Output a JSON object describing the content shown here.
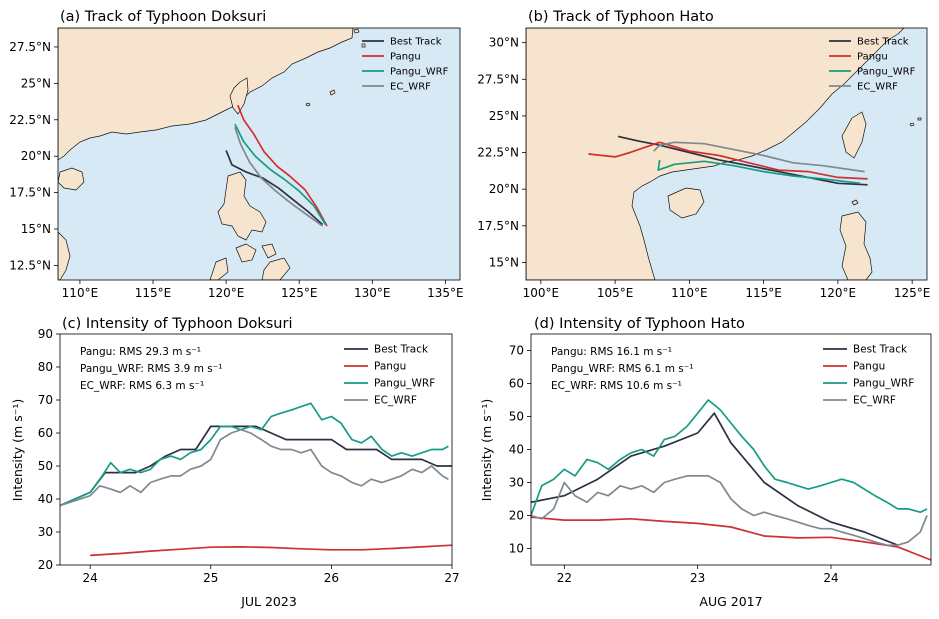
{
  "colors": {
    "best": "#2b3140",
    "pangu": "#d03030",
    "pangu_wrf": "#169c84",
    "ec_wrf": "#808890",
    "land": "#f6e4ce",
    "sea": "#d7e9f5",
    "coast": "#111111"
  },
  "chart_data": [
    {
      "type": "line",
      "subtype": "map-track",
      "title": "(a) Track of Typhoon Doksuri",
      "xlim": [
        108.5,
        136.0
      ],
      "ylim": [
        11.5,
        28.8
      ],
      "xticks": [
        110,
        115,
        120,
        125,
        130,
        135
      ],
      "xtick_labels": [
        "110°E",
        "115°E",
        "120°E",
        "125°E",
        "130°E",
        "135°E"
      ],
      "yticks": [
        12.5,
        15,
        17.5,
        20,
        22.5,
        25,
        27.5
      ],
      "ytick_labels": [
        "12.5°N",
        "15°N",
        "17.5°N",
        "20°N",
        "22.5°N",
        "25°N",
        "27.5°N"
      ],
      "legend": [
        "Best Track",
        "Pangu",
        "Pangu_WRF",
        "EC_WRF"
      ],
      "legend_position": "top-right",
      "series": [
        {
          "name": "Best Track",
          "lon": [
            126.6,
            125.6,
            124.6,
            123.6,
            122.5,
            121.4,
            120.4,
            120.0
          ],
          "lat": [
            15.3,
            16.2,
            17.0,
            17.8,
            18.5,
            18.9,
            19.4,
            20.4
          ]
        },
        {
          "name": "Pangu",
          "lon": [
            126.9,
            126.2,
            125.4,
            124.4,
            123.5,
            122.6,
            121.9,
            121.2,
            120.8
          ],
          "lat": [
            15.2,
            16.5,
            17.7,
            18.6,
            19.3,
            20.3,
            21.5,
            22.5,
            23.5
          ]
        },
        {
          "name": "Pangu_WRF",
          "lon": [
            126.8,
            126.0,
            125.0,
            124.0,
            123.0,
            122.0,
            121.2,
            120.6
          ],
          "lat": [
            15.3,
            16.6,
            17.6,
            18.4,
            19.1,
            20.0,
            21.0,
            22.2
          ]
        },
        {
          "name": "EC_WRF",
          "lon": [
            126.6,
            125.5,
            124.4,
            123.4,
            122.4,
            121.6,
            121.0,
            120.6
          ],
          "lat": [
            15.2,
            16.0,
            16.8,
            17.6,
            18.5,
            19.6,
            20.8,
            22.0
          ]
        }
      ]
    },
    {
      "type": "line",
      "subtype": "map-track",
      "title": "(b) Track of Typhoon Hato",
      "xlim": [
        99.0,
        126.0
      ],
      "ylim": [
        13.8,
        31.0
      ],
      "xticks": [
        100,
        105,
        110,
        115,
        120,
        125
      ],
      "xtick_labels": [
        "100°E",
        "105°E",
        "110°E",
        "115°E",
        "120°E",
        "125°E"
      ],
      "yticks": [
        15,
        17.5,
        20,
        22.5,
        25,
        27.5,
        30
      ],
      "ytick_labels": [
        "15°N",
        "17.5°N",
        "20°N",
        "22.5°N",
        "25°N",
        "27.5°N",
        "30°N"
      ],
      "legend": [
        "Best Track",
        "Pangu",
        "Pangu_WRF",
        "EC_WRF"
      ],
      "legend_position": "top-right",
      "series": [
        {
          "name": "Best Track",
          "lon": [
            122.0,
            120.0,
            118.0,
            116.0,
            114.0,
            112.0,
            110.0,
            108.0,
            106.5,
            105.2
          ],
          "lat": [
            20.3,
            20.4,
            20.8,
            21.2,
            21.6,
            22.0,
            22.5,
            23.0,
            23.3,
            23.6
          ]
        },
        {
          "name": "Pangu",
          "lon": [
            122.0,
            120.0,
            118.0,
            116.0,
            114.0,
            112.0,
            110.0,
            108.0,
            106.0,
            105.0,
            103.2
          ],
          "lat": [
            20.7,
            20.8,
            21.2,
            21.3,
            21.8,
            22.3,
            22.6,
            23.2,
            22.5,
            22.2,
            22.4
          ]
        },
        {
          "name": "Pangu_WRF",
          "lon": [
            121.5,
            119.0,
            117.0,
            115.0,
            113.0,
            111.0,
            109.0,
            107.9,
            108.0
          ],
          "lat": [
            20.4,
            20.7,
            20.9,
            21.2,
            21.6,
            21.9,
            21.7,
            21.3,
            22.0
          ]
        },
        {
          "name": "EC_WRF",
          "lon": [
            121.8,
            119.0,
            117.0,
            115.0,
            113.0,
            111.0,
            109.0,
            108.0,
            107.6
          ],
          "lat": [
            21.2,
            21.6,
            21.8,
            22.3,
            22.7,
            23.1,
            23.2,
            23.0,
            22.6
          ]
        }
      ]
    },
    {
      "type": "line",
      "title": "(c) Intensity of Typhoon Doksuri",
      "xlabel": "JUL 2023",
      "ylabel": "Intensity (m s⁻¹)",
      "xlim": [
        23.75,
        27.0
      ],
      "ylim": [
        20,
        90
      ],
      "xticks": [
        24,
        25,
        26,
        27
      ],
      "xtick_labels": [
        "24",
        "25",
        "26",
        "27"
      ],
      "yticks": [
        20,
        30,
        40,
        50,
        60,
        70,
        80,
        90
      ],
      "annotations": [
        "Pangu: RMS 29.3 m s⁻¹",
        "Pangu_WRF: RMS 3.9 m s⁻¹",
        "EC_WRF: RMS 6.3 m s⁻¹"
      ],
      "legend": [
        "Best Track",
        "Pangu",
        "Pangu_WRF",
        "EC_WRF"
      ],
      "legend_position": "top-right",
      "series": [
        {
          "name": "Best Track",
          "x": [
            23.75,
            24.0,
            24.125,
            24.375,
            24.5,
            24.625,
            24.75,
            24.875,
            25.0,
            25.375,
            25.5,
            25.625,
            26.0,
            26.125,
            26.375,
            26.5,
            26.75,
            26.875,
            27.0
          ],
          "y": [
            38,
            42,
            48,
            48,
            50,
            53,
            55,
            55,
            62,
            62,
            60,
            58,
            58,
            55,
            55,
            52,
            52,
            50,
            50
          ]
        },
        {
          "name": "Pangu",
          "x": [
            24.0,
            24.25,
            24.5,
            24.75,
            25.0,
            25.25,
            25.5,
            25.75,
            26.0,
            26.25,
            26.5,
            26.75,
            27.0
          ],
          "y": [
            22.9,
            23.5,
            24.2,
            24.8,
            25.4,
            25.5,
            25.3,
            24.9,
            24.6,
            24.6,
            25.0,
            25.5,
            26.0
          ]
        },
        {
          "name": "Pangu_WRF",
          "x": [
            23.75,
            24.0,
            24.1,
            24.17,
            24.25,
            24.33,
            24.42,
            24.5,
            24.58,
            24.67,
            24.75,
            24.83,
            24.92,
            25.0,
            25.08,
            25.17,
            25.25,
            25.33,
            25.42,
            25.5,
            25.58,
            25.67,
            25.75,
            25.83,
            25.92,
            26.0,
            26.08,
            26.17,
            26.25,
            26.33,
            26.42,
            26.5,
            26.58,
            26.67,
            26.75,
            26.83,
            26.92,
            26.97
          ],
          "y": [
            38,
            42,
            47,
            51,
            48,
            49,
            48,
            49,
            52,
            53,
            52,
            54,
            55,
            58,
            62,
            62,
            61,
            62,
            61,
            65,
            66,
            67,
            68,
            69,
            64,
            65,
            63,
            58,
            57,
            59,
            55,
            53,
            54,
            53,
            54,
            55,
            55,
            56
          ]
        },
        {
          "name": "EC_WRF",
          "x": [
            23.75,
            24.0,
            24.08,
            24.17,
            24.25,
            24.33,
            24.42,
            24.5,
            24.58,
            24.67,
            24.75,
            24.83,
            24.92,
            25.0,
            25.08,
            25.17,
            25.25,
            25.33,
            25.42,
            25.5,
            25.58,
            25.67,
            25.75,
            25.83,
            25.92,
            26.0,
            26.08,
            26.17,
            26.25,
            26.33,
            26.42,
            26.5,
            26.58,
            26.67,
            26.75,
            26.83,
            26.92,
            26.97
          ],
          "y": [
            38,
            41,
            44,
            43,
            42,
            44,
            42,
            45,
            46,
            47,
            47,
            49,
            50,
            52,
            58,
            60,
            61,
            60,
            58,
            56,
            55,
            55,
            54,
            55,
            50,
            48,
            47,
            45,
            44,
            46,
            45,
            46,
            47,
            49,
            48,
            50,
            47,
            46
          ]
        }
      ]
    },
    {
      "type": "line",
      "title": "(d) Intensity of Typhoon Hato",
      "xlabel": "AUG 2017",
      "ylabel": "Intensity (m s⁻¹)",
      "xlim": [
        21.75,
        24.75
      ],
      "ylim": [
        5,
        75
      ],
      "xticks": [
        22,
        23,
        24
      ],
      "xtick_labels": [
        "22",
        "23",
        "24"
      ],
      "yticks": [
        10,
        20,
        30,
        40,
        50,
        60,
        70
      ],
      "annotations": [
        "Pangu: RMS 16.1 m s⁻¹",
        "Pangu_WRF: RMS 6.1 m s⁻¹",
        "EC_WRF: RMS 10.6 m s⁻¹"
      ],
      "legend": [
        "Best Track",
        "Pangu",
        "Pangu_WRF",
        "EC_WRF"
      ],
      "legend_position": "top-right",
      "series": [
        {
          "name": "Best Track",
          "x": [
            21.75,
            22.0,
            22.25,
            22.5,
            22.75,
            23.0,
            23.125,
            23.25,
            23.5,
            23.75,
            24.0,
            24.25,
            24.5
          ],
          "y": [
            24,
            26,
            31,
            38,
            41,
            45,
            51,
            42,
            30,
            23,
            18,
            15,
            11
          ]
        },
        {
          "name": "Pangu",
          "x": [
            21.75,
            22.0,
            22.25,
            22.5,
            22.75,
            23.0,
            23.25,
            23.5,
            23.75,
            24.0,
            24.25,
            24.5,
            24.75
          ],
          "y": [
            19.5,
            18.6,
            18.6,
            19.0,
            18.2,
            17.6,
            16.5,
            13.8,
            13.2,
            13.4,
            12.0,
            10.5,
            6.5
          ]
        },
        {
          "name": "Pangu_WRF",
          "x": [
            21.75,
            21.83,
            21.92,
            22.0,
            22.08,
            22.17,
            22.25,
            22.33,
            22.42,
            22.5,
            22.58,
            22.67,
            22.75,
            22.83,
            22.92,
            23.0,
            23.08,
            23.17,
            23.25,
            23.33,
            23.42,
            23.5,
            23.58,
            23.67,
            23.75,
            23.83,
            23.92,
            24.0,
            24.08,
            24.17,
            24.25,
            24.33,
            24.42,
            24.5,
            24.58,
            24.67,
            24.72
          ],
          "y": [
            20,
            29,
            31,
            34,
            32,
            37,
            36,
            34,
            37,
            39,
            40,
            38,
            43,
            44,
            47,
            51,
            55,
            52,
            48,
            44,
            40,
            35,
            31,
            30,
            29,
            28,
            29,
            30,
            31,
            30,
            28,
            26,
            24,
            22,
            22,
            21,
            22
          ]
        },
        {
          "name": "EC_WRF",
          "x": [
            21.75,
            21.83,
            21.92,
            22.0,
            22.08,
            22.17,
            22.25,
            22.33,
            22.42,
            22.5,
            22.58,
            22.67,
            22.75,
            22.83,
            22.92,
            23.0,
            23.08,
            23.17,
            23.25,
            23.33,
            23.42,
            23.5,
            23.58,
            23.67,
            23.75,
            23.83,
            23.92,
            24.0,
            24.08,
            24.17,
            24.25,
            24.33,
            24.42,
            24.5,
            24.58,
            24.67,
            24.72
          ],
          "y": [
            20,
            19,
            22,
            30,
            26,
            24,
            27,
            26,
            29,
            28,
            29,
            27,
            30,
            31,
            32,
            32,
            32,
            30,
            25,
            22,
            20,
            21,
            20,
            19,
            18,
            17,
            16,
            16,
            15,
            14,
            13,
            12,
            11,
            11,
            12,
            15,
            20
          ]
        }
      ]
    }
  ]
}
